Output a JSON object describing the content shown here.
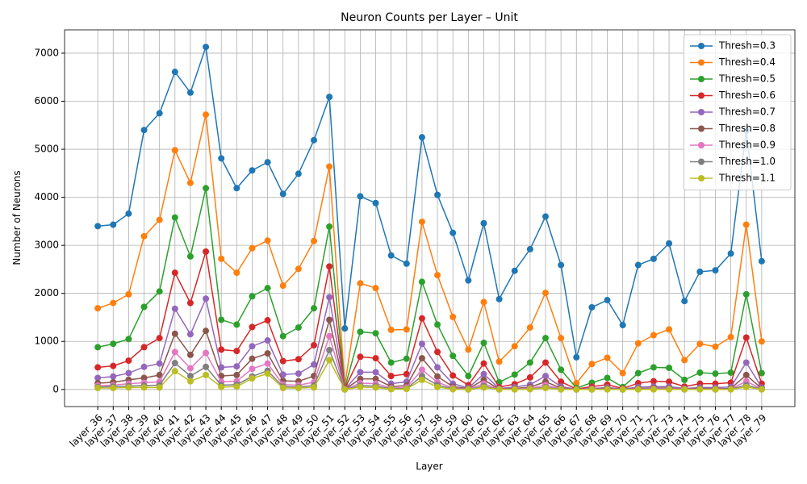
{
  "chart_data": {
    "type": "line",
    "title": "Neuron Counts per Layer – Unit",
    "xlabel": "Layer",
    "ylabel": "Number of Neurons",
    "categories": [
      "layer_36",
      "layer_37",
      "layer_38",
      "layer_39",
      "layer_40",
      "layer_41",
      "layer_42",
      "layer_43",
      "layer_44",
      "layer_45",
      "layer_46",
      "layer_47",
      "layer_48",
      "layer_49",
      "layer_50",
      "layer_51",
      "layer_52",
      "layer_53",
      "layer_54",
      "layer_55",
      "layer_56",
      "layer_57",
      "layer_58",
      "layer_59",
      "layer_60",
      "layer_61",
      "layer_62",
      "layer_63",
      "layer_64",
      "layer_65",
      "layer_66",
      "layer_67",
      "layer_68",
      "layer_69",
      "layer_70",
      "layer_71",
      "layer_72",
      "layer_73",
      "layer_74",
      "layer_75",
      "layer_76",
      "layer_77",
      "layer_78",
      "layer_79"
    ],
    "series": [
      {
        "name": "Thresh=0.3",
        "color": "#1f77b4",
        "values": [
          3400,
          3430,
          3660,
          5400,
          5750,
          6610,
          6180,
          7130,
          4810,
          4190,
          4560,
          4730,
          4070,
          4490,
          5190,
          6090,
          1270,
          4020,
          3880,
          2790,
          2620,
          5250,
          4050,
          3260,
          2270,
          3460,
          1880,
          2470,
          2920,
          3600,
          2590,
          670,
          1710,
          1860,
          1340,
          2590,
          2720,
          3040,
          1840,
          2450,
          2480,
          2830,
          5390,
          2670
        ]
      },
      {
        "name": "Thresh=0.4",
        "color": "#ff7f0e",
        "values": [
          1690,
          1800,
          1980,
          3190,
          3530,
          4980,
          4300,
          5720,
          2720,
          2430,
          2940,
          3100,
          2160,
          2510,
          3090,
          4640,
          80,
          2210,
          2110,
          1240,
          1250,
          3490,
          2380,
          1510,
          830,
          1820,
          580,
          900,
          1290,
          2010,
          1070,
          130,
          530,
          660,
          340,
          960,
          1130,
          1250,
          610,
          950,
          890,
          1090,
          3430,
          1000
        ]
      },
      {
        "name": "Thresh=0.5",
        "color": "#2ca02c",
        "values": [
          880,
          950,
          1050,
          1720,
          2040,
          3580,
          2770,
          4190,
          1450,
          1350,
          1940,
          2110,
          1110,
          1290,
          1690,
          3390,
          30,
          1200,
          1170,
          560,
          640,
          2240,
          1350,
          700,
          280,
          970,
          150,
          310,
          560,
          1070,
          410,
          30,
          140,
          240,
          50,
          340,
          460,
          450,
          200,
          350,
          330,
          350,
          1980,
          340
        ]
      },
      {
        "name": "Thresh=0.6",
        "color": "#d62728",
        "values": [
          460,
          490,
          600,
          880,
          1070,
          2430,
          1800,
          2870,
          830,
          800,
          1300,
          1440,
          590,
          630,
          920,
          2560,
          20,
          680,
          650,
          280,
          320,
          1480,
          780,
          290,
          90,
          540,
          50,
          110,
          250,
          560,
          160,
          10,
          60,
          100,
          20,
          130,
          170,
          160,
          60,
          120,
          120,
          140,
          1080,
          120
        ]
      },
      {
        "name": "Thresh=0.7",
        "color": "#9467bd",
        "values": [
          240,
          270,
          340,
          470,
          540,
          1680,
          1150,
          1890,
          460,
          480,
          900,
          1020,
          310,
          330,
          520,
          1920,
          10,
          360,
          360,
          120,
          160,
          950,
          460,
          120,
          30,
          320,
          20,
          50,
          100,
          280,
          60,
          5,
          20,
          40,
          10,
          50,
          60,
          60,
          20,
          40,
          40,
          50,
          560,
          40
        ]
      },
      {
        "name": "Thresh=0.8",
        "color": "#8c564b",
        "values": [
          130,
          150,
          200,
          240,
          300,
          1160,
          720,
          1220,
          280,
          300,
          640,
          750,
          180,
          170,
          280,
          1450,
          5,
          220,
          220,
          60,
          80,
          650,
          270,
          60,
          15,
          200,
          10,
          20,
          50,
          160,
          30,
          0,
          10,
          20,
          5,
          20,
          30,
          30,
          10,
          20,
          15,
          20,
          300,
          20
        ]
      },
      {
        "name": "Thresh=0.9",
        "color": "#e377c2",
        "values": [
          80,
          90,
          120,
          140,
          160,
          780,
          440,
          760,
          160,
          170,
          430,
          540,
          100,
          90,
          150,
          1110,
          0,
          130,
          120,
          30,
          40,
          410,
          150,
          30,
          5,
          120,
          5,
          10,
          25,
          90,
          15,
          0,
          5,
          10,
          0,
          10,
          15,
          15,
          5,
          10,
          5,
          10,
          170,
          10
        ]
      },
      {
        "name": "Thresh=1.0",
        "color": "#7f7f7f",
        "values": [
          50,
          60,
          70,
          80,
          90,
          550,
          280,
          470,
          90,
          100,
          270,
          390,
          60,
          50,
          80,
          820,
          0,
          80,
          70,
          15,
          20,
          280,
          90,
          15,
          0,
          70,
          0,
          5,
          10,
          50,
          5,
          0,
          0,
          5,
          0,
          5,
          5,
          5,
          0,
          5,
          0,
          5,
          90,
          5
        ]
      },
      {
        "name": "Thresh=1.1",
        "color": "#bcbd22",
        "values": [
          30,
          30,
          40,
          40,
          40,
          380,
          170,
          300,
          50,
          60,
          230,
          330,
          30,
          30,
          40,
          610,
          0,
          50,
          40,
          5,
          10,
          200,
          50,
          5,
          0,
          40,
          0,
          0,
          5,
          30,
          0,
          0,
          0,
          0,
          0,
          0,
          0,
          0,
          0,
          0,
          0,
          0,
          50,
          0
        ]
      }
    ],
    "ylim": [
      -356,
      7486
    ],
    "yticks": [
      0,
      1000,
      2000,
      3000,
      4000,
      5000,
      6000,
      7000
    ],
    "grid": true,
    "legend": "upper right"
  }
}
